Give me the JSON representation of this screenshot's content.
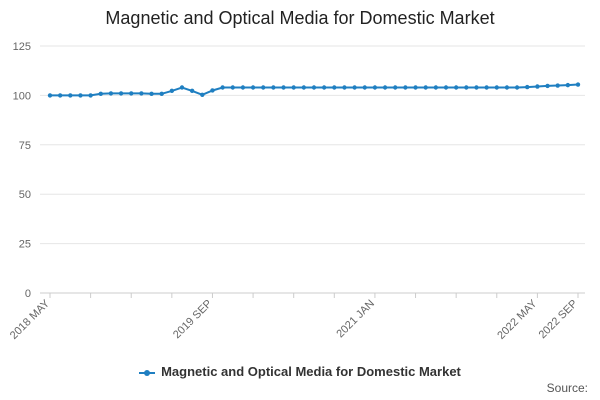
{
  "chart_data": {
    "type": "line",
    "title": "Magnetic and Optical Media for Domestic Market",
    "x_tick_labels": [
      "2018 MAY",
      "2019 SEP",
      "2021 JAN",
      "2022 MAY",
      "2022 SEP"
    ],
    "x_tick_indices": [
      0,
      16,
      32,
      48,
      52
    ],
    "x_start": "2018 MAY",
    "x_end": "2022 SEP",
    "ylim": [
      0,
      125
    ],
    "y_ticks": [
      0,
      25,
      50,
      75,
      100,
      125
    ],
    "grid": true,
    "legend_position": "bottom",
    "color": "#1f7fc1",
    "series": [
      {
        "name": "Magnetic and Optical Media for Domestic Market",
        "values": [
          100,
          100,
          100,
          100,
          100,
          100.8,
          101,
          101,
          101,
          101,
          100.8,
          100.8,
          102.3,
          104,
          102.3,
          100.3,
          102.5,
          104,
          104,
          104,
          104,
          104,
          104,
          104,
          104,
          104,
          104,
          104,
          104,
          104,
          104,
          104,
          104,
          104,
          104,
          104,
          104,
          104,
          104,
          104,
          104,
          104,
          104,
          104,
          104,
          104,
          104,
          104.2,
          104.5,
          104.8,
          105,
          105.2,
          105.5
        ]
      }
    ],
    "source_label": "Source:"
  }
}
